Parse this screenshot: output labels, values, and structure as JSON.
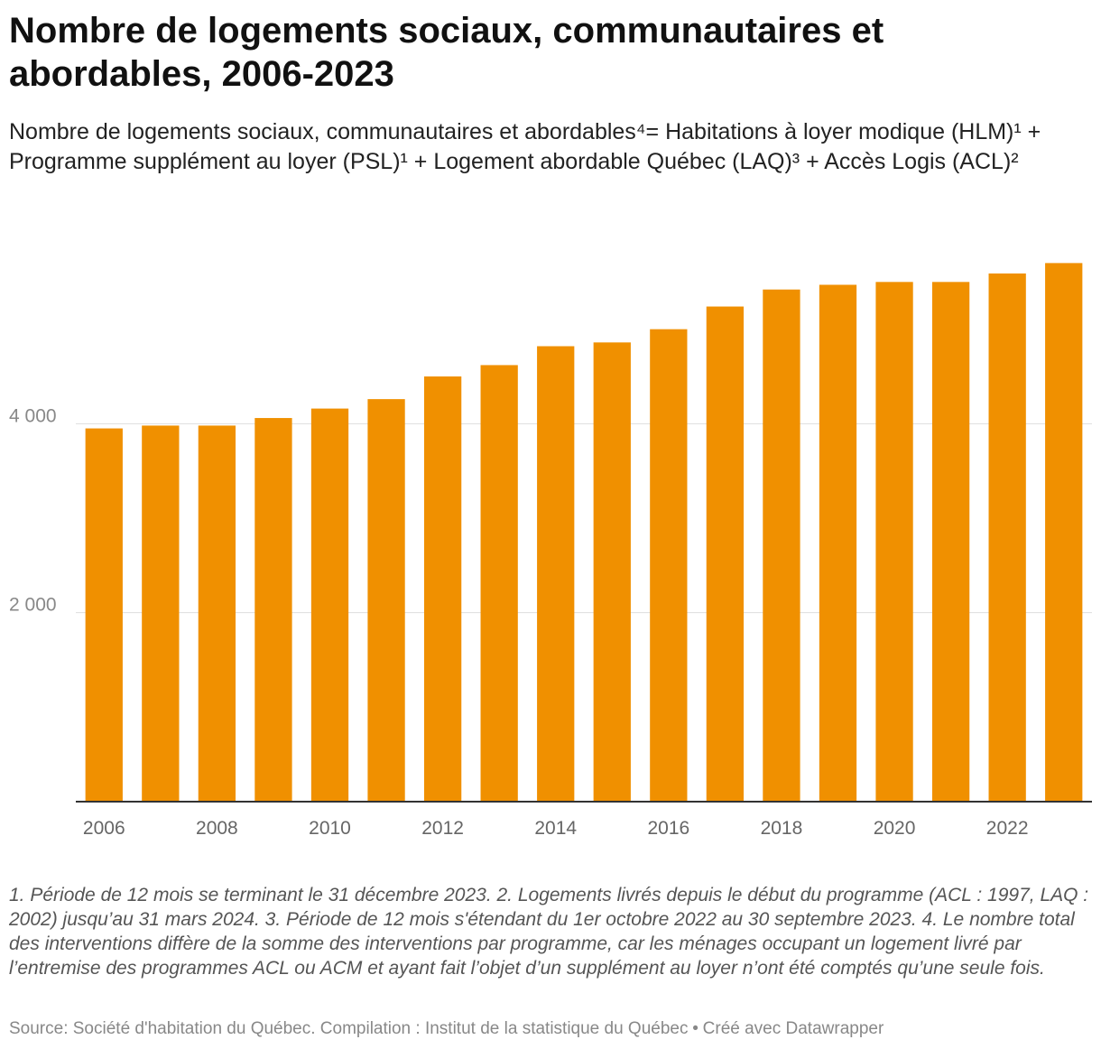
{
  "header": {
    "title": "Nombre de logements sociaux, communautaires et abordables, 2006-2023",
    "subtitle": "Nombre de logements sociaux, communautaires et abordables⁴= Habitations à loyer modique (HLM)¹ + Programme supplément au loyer (PSL)¹ + Logement abordable Québec (LAQ)³ + Accès Logis (ACL)²"
  },
  "chart_data": {
    "type": "bar",
    "categories": [
      "2006",
      "2007",
      "2008",
      "2009",
      "2010",
      "2011",
      "2012",
      "2013",
      "2014",
      "2015",
      "2016",
      "2017",
      "2018",
      "2019",
      "2020",
      "2021",
      "2022",
      "2023"
    ],
    "values": [
      3950,
      3980,
      3980,
      4060,
      4160,
      4260,
      4500,
      4620,
      4820,
      4860,
      5000,
      5240,
      5420,
      5470,
      5500,
      5500,
      5590,
      5700
    ],
    "x_tick_labels": [
      "2006",
      "2008",
      "2010",
      "2012",
      "2014",
      "2016",
      "2018",
      "2020",
      "2022"
    ],
    "y_ticks": [
      2000,
      4000
    ],
    "y_tick_labels": [
      "2 000",
      "4 000"
    ],
    "ylim": [
      0,
      6000
    ],
    "grid": true,
    "bar_color": "#f09000"
  },
  "footer": {
    "notes": "1. Période de 12 mois se terminant le 31 décembre 2023. 2. Logements livrés depuis le début du programme (ACL : 1997, LAQ : 2002) jusqu’au 31 mars 2024. 3. Période de 12 mois s'étendant du 1er octobre 2022 au 30 septembre 2023. 4. Le nombre total des interventions diffère de la somme des interventions par programme, car les ménages occupant un logement livré par l’entremise des programmes ACL ou ACM et ayant fait l’objet d’un supplément au loyer n’ont été comptés qu’une seule fois.",
    "source": "Source: Société d'habitation du Québec. Compilation : Institut de la statistique du Québec",
    "separator": "•",
    "credit": "Créé avec Datawrapper"
  }
}
